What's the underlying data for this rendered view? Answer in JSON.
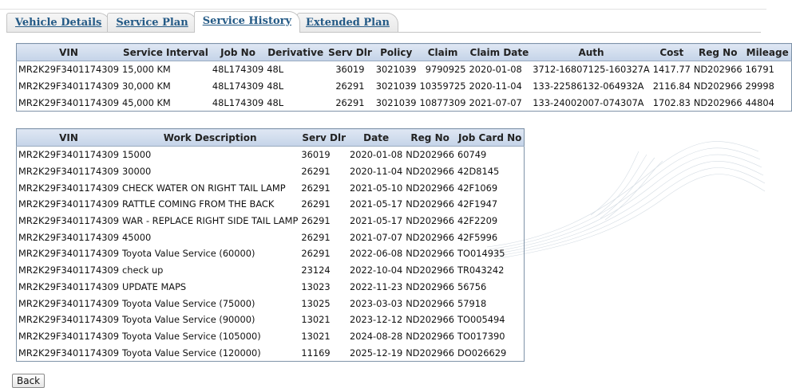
{
  "tabs": [
    {
      "label": "Vehicle Details"
    },
    {
      "label": "Service Plan"
    },
    {
      "label": "Service History"
    },
    {
      "label": "Extended Plan"
    }
  ],
  "service_table": {
    "headers": [
      "VIN",
      "Service Interval",
      "Job No",
      "Derivative",
      "Serv Dlr",
      "Policy",
      "Claim",
      "Claim Date",
      "Auth",
      "Cost",
      "Reg No",
      "Mileage"
    ],
    "rows": [
      [
        "MR2K29F3401174309",
        "15,000 KM",
        "48L174309",
        "48L",
        "36019",
        "3021039",
        "9790925",
        "2020-01-08",
        "3712-16807125-160327A",
        "1417.77",
        "ND202966",
        "16791"
      ],
      [
        "MR2K29F3401174309",
        "30,000 KM",
        "48L174309",
        "48L",
        "26291",
        "3021039",
        "10359725",
        "2020-11-04",
        "133-22586132-064932A",
        "2116.84",
        "ND202966",
        "29998"
      ],
      [
        "MR2K29F3401174309",
        "45,000 KM",
        "48L174309",
        "48L",
        "26291",
        "3021039",
        "10877309",
        "2021-07-07",
        "133-24002007-074307A",
        "1702.83",
        "ND202966",
        "44804"
      ]
    ]
  },
  "history_table": {
    "headers": [
      "VIN",
      "Work Description",
      "Serv Dlr",
      "Date",
      "Reg No",
      "Job Card No"
    ],
    "rows": [
      [
        "MR2K29F3401174309",
        "15000",
        "36019",
        "2020-01-08",
        "ND202966",
        "60749"
      ],
      [
        "MR2K29F3401174309",
        "30000",
        "26291",
        "2020-11-04",
        "ND202966",
        "42D8145"
      ],
      [
        "MR2K29F3401174309",
        "CHECK WATER ON RIGHT TAIL LAMP",
        "26291",
        "2021-05-10",
        "ND202966",
        "42F1069"
      ],
      [
        "MR2K29F3401174309",
        "RATTLE COMING FROM THE BACK",
        "26291",
        "2021-05-17",
        "ND202966",
        "42F1947"
      ],
      [
        "MR2K29F3401174309",
        "WAR - REPLACE RIGHT SIDE TAIL LAMP",
        "26291",
        "2021-05-17",
        "ND202966",
        "42F2209"
      ],
      [
        "MR2K29F3401174309",
        "45000",
        "26291",
        "2021-07-07",
        "ND202966",
        "42F5996"
      ],
      [
        "MR2K29F3401174309",
        "Toyota Value Service (60000)",
        "26291",
        "2022-06-08",
        "ND202966",
        "TO014935"
      ],
      [
        "MR2K29F3401174309",
        "check up",
        "23124",
        "2022-10-04",
        "ND202966",
        "TR043242"
      ],
      [
        "MR2K29F3401174309",
        "UPDATE MAPS",
        "13023",
        "2022-11-23",
        "ND202966",
        "56756"
      ],
      [
        "MR2K29F3401174309",
        "Toyota Value Service (75000)",
        "13025",
        "2023-03-03",
        "ND202966",
        "57918"
      ],
      [
        "MR2K29F3401174309",
        "Toyota Value Service (90000)",
        "13021",
        "2023-12-12",
        "ND202966",
        "TO005494"
      ],
      [
        "MR2K29F3401174309",
        "Toyota Value Service (105000)",
        "13021",
        "2024-08-28",
        "ND202966",
        "TO017390"
      ],
      [
        "MR2K29F3401174309",
        "Toyota Value Service (120000)",
        "11169",
        "2025-12-19",
        "ND202966",
        "DO026629"
      ]
    ]
  },
  "back_label": "Back"
}
